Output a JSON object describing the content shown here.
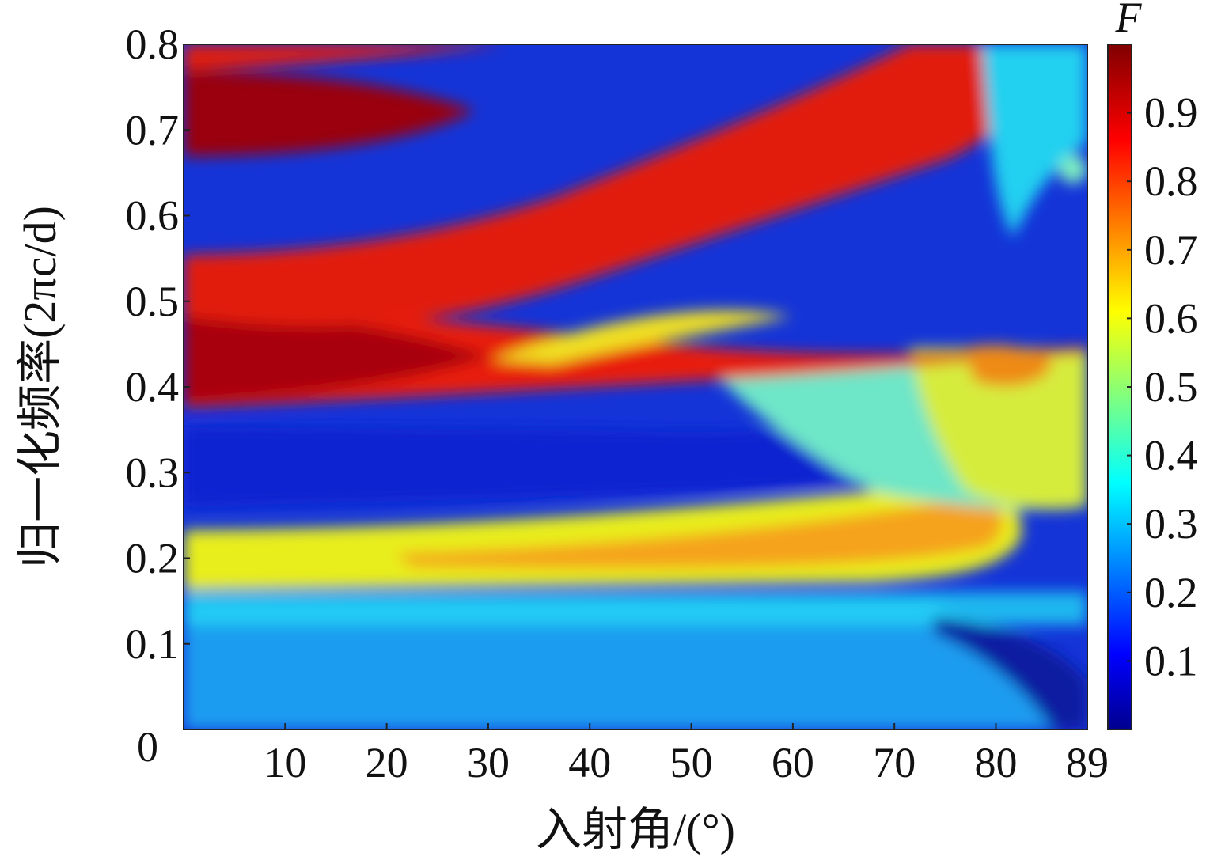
{
  "chart_data": {
    "type": "heatmap",
    "title": "",
    "xlabel": "入射角/(°)",
    "ylabel": "归一化频率(2πc/d)",
    "xlim": [
      0,
      89
    ],
    "ylim": [
      0,
      0.8
    ],
    "x_ticks": [
      "0",
      "10",
      "20",
      "30",
      "40",
      "50",
      "60",
      "70",
      "80",
      "89"
    ],
    "y_ticks": [
      "0",
      "0.1",
      "0.2",
      "0.3",
      "0.4",
      "0.5",
      "0.6",
      "0.7",
      "0.8"
    ],
    "colorbar": {
      "label": "F",
      "range": [
        0,
        1
      ],
      "ticks": [
        "0.1",
        "0.2",
        "0.3",
        "0.4",
        "0.5",
        "0.6",
        "0.7",
        "0.8",
        "0.9"
      ],
      "colormap": "jet"
    },
    "regions": [
      {
        "description": "low-frequency band",
        "freq_range": [
          0.0,
          0.17
        ],
        "angle_range": [
          0,
          89
        ],
        "F": 0.25
      },
      {
        "description": "yellow-orange band, peak near 80°",
        "freq_range": [
          0.19,
          0.26
        ],
        "angle_range": [
          0,
          85
        ],
        "F": 0.75
      },
      {
        "description": "blue band",
        "freq_range": [
          0.28,
          0.37
        ],
        "angle_range": [
          0,
          60
        ],
        "F": 0.08
      },
      {
        "description": "red band splitting at 0.5",
        "freq_range": [
          0.39,
          0.56
        ],
        "angle_range": [
          0,
          55
        ],
        "F": 0.95
      },
      {
        "description": "red band rising with angle",
        "freq_range": [
          0.57,
          0.8
        ],
        "angle_range": [
          10,
          80
        ],
        "F": 0.9
      },
      {
        "description": "dark red top-left lobe",
        "freq_range": [
          0.69,
          0.78
        ],
        "angle_range": [
          0,
          25
        ],
        "F": 0.98
      }
    ]
  }
}
